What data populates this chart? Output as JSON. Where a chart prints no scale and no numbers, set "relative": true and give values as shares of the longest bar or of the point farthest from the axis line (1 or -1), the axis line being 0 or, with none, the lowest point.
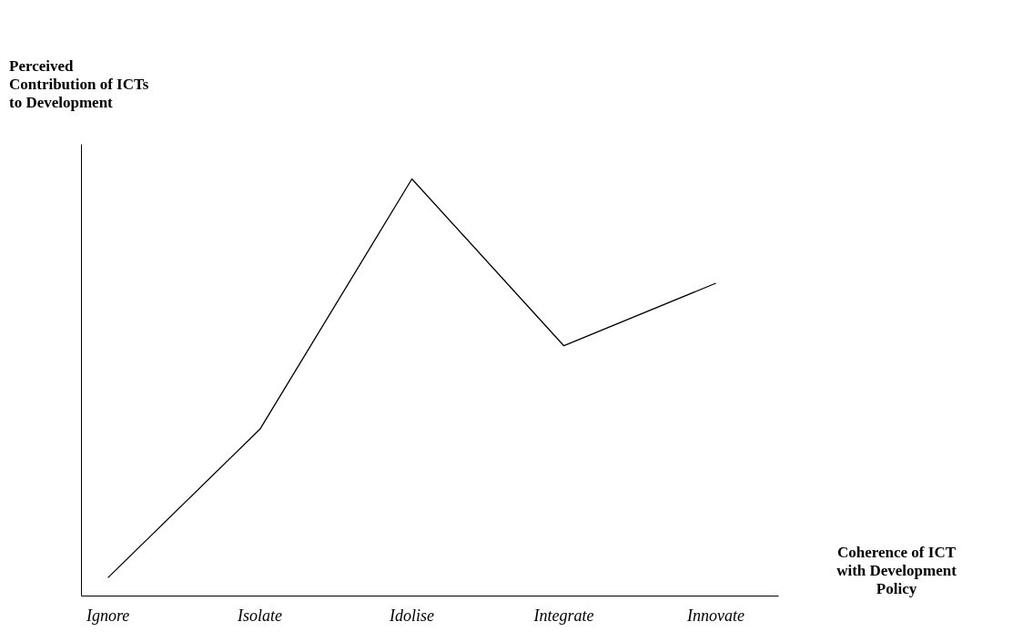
{
  "chart_data": {
    "type": "line",
    "relative": true,
    "xlabel": "Coherence of ICT with Development Policy",
    "ylabel": "Perceived Contribution of ICTs to Development",
    "categories": [
      "Ignore",
      "Isolate",
      "Idolise",
      "Integrate",
      "Innovate"
    ],
    "series": [
      {
        "color": "#000000",
        "values": [
          0.044,
          0.4,
          1,
          0.6,
          0.75
        ]
      }
    ],
    "grid": false,
    "marker": "none",
    "line_style": "solid"
  }
}
